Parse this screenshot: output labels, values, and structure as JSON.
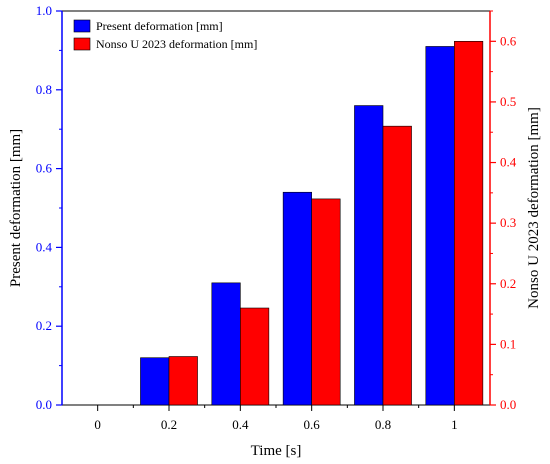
{
  "chart_data": {
    "type": "bar",
    "categories": [
      "0",
      "0.2",
      "0.4",
      "0.6",
      "0.8",
      "1"
    ],
    "xlabel": "Time [s]",
    "series": [
      {
        "name": "Present deformation [mm]",
        "axis": "left",
        "color": "#0000ff",
        "values": [
          0,
          0.12,
          0.31,
          0.54,
          0.76,
          0.91
        ]
      },
      {
        "name": "Nonso U 2023 deformation [mm]",
        "axis": "right",
        "color": "#ff0000",
        "values": [
          0,
          0.08,
          0.16,
          0.34,
          0.46,
          0.6
        ]
      }
    ],
    "y_left": {
      "label": "Present deformation [mm]",
      "color": "#0000ff",
      "range": [
        0.0,
        1.0
      ],
      "ticks": [
        "0.0",
        "0.2",
        "0.4",
        "0.6",
        "0.8",
        "1.0"
      ]
    },
    "y_right": {
      "label": "Nonso U 2023 deformation [mm]",
      "color": "#ff0000",
      "range": [
        0.0,
        0.65
      ],
      "ticks": [
        "0.0",
        "0.1",
        "0.2",
        "0.3",
        "0.4",
        "0.5",
        "0.6"
      ]
    },
    "grid": false,
    "legend_position": "top-left"
  }
}
